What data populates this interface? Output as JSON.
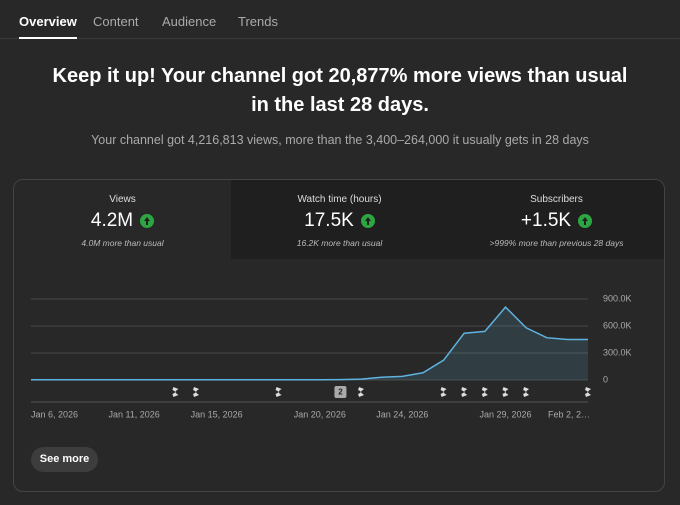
{
  "tabs": [
    "Overview",
    "Content",
    "Audience",
    "Trends"
  ],
  "headline": {
    "line1": "Keep it up! Your channel got 20,877% more views than usual",
    "line2": "in the last 28 days."
  },
  "subtitle": "Your channel got 4,216,813 views, more than the 3,400–264,000 it usually gets in 28 days",
  "metrics": [
    {
      "label": "Views",
      "value": "4.2M",
      "note": "4.0M more than usual"
    },
    {
      "label": "Watch time (hours)",
      "value": "17.5K",
      "note": "16.2K more than usual"
    },
    {
      "label": "Subscribers",
      "value": "+1.5K",
      "note": ">999% more than previous 28 days"
    }
  ],
  "button": "See more",
  "chart_data": {
    "type": "line",
    "categories": [
      "Jan 6, 2026",
      null,
      null,
      null,
      null,
      "Jan 11, 2026",
      null,
      null,
      null,
      "Jan 15, 2026",
      null,
      null,
      null,
      null,
      "Jan 20, 2026",
      null,
      null,
      null,
      "Jan 24, 2026",
      null,
      null,
      null,
      null,
      "Jan 29, 2026",
      null,
      null,
      null,
      "Feb 2, 2…"
    ],
    "series": [
      {
        "name": "Views",
        "color": "#5eb3e0",
        "values": [
          3000,
          3000,
          3000,
          3000,
          3000,
          3000,
          3000,
          3000,
          3000,
          3000,
          3000,
          3000,
          3000,
          3000,
          3000,
          5000,
          10000,
          30000,
          40000,
          80000,
          220000,
          520000,
          540000,
          810000,
          580000,
          470000,
          450000,
          450000
        ]
      }
    ],
    "ylim": [
      0,
      900000
    ],
    "yticks": [
      0,
      {
        "value": 300000,
        "label": "300.0K"
      },
      {
        "value": 600000,
        "label": "600.0K"
      },
      {
        "value": 900000,
        "label": "900.0K"
      }
    ],
    "grid": true,
    "event_badge": "2"
  }
}
